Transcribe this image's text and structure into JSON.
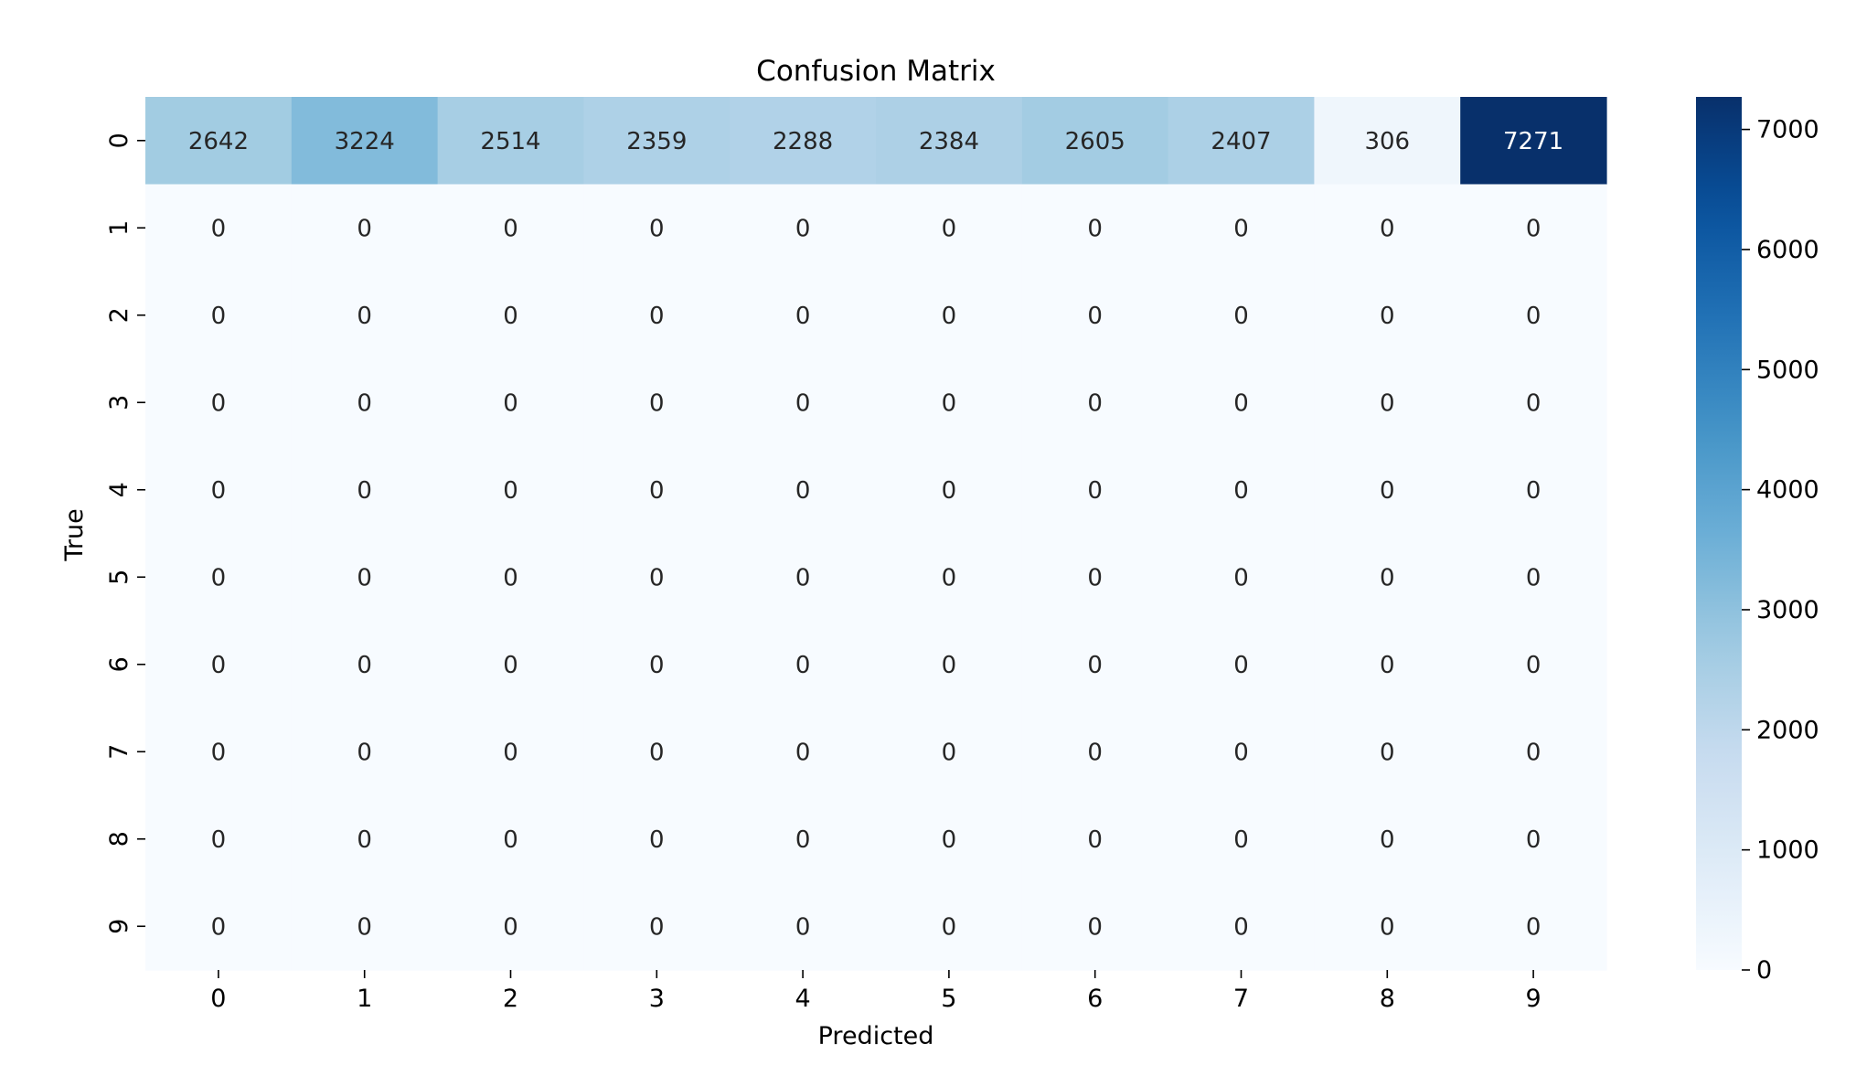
{
  "chart_data": {
    "type": "heatmap",
    "title": "Confusion Matrix",
    "xlabel": "Predicted",
    "ylabel": "True",
    "x_categories": [
      "0",
      "1",
      "2",
      "3",
      "4",
      "5",
      "6",
      "7",
      "8",
      "9"
    ],
    "y_categories": [
      "0",
      "1",
      "2",
      "3",
      "4",
      "5",
      "6",
      "7",
      "8",
      "9"
    ],
    "values": [
      [
        2642,
        3224,
        2514,
        2359,
        2288,
        2384,
        2605,
        2407,
        306,
        7271
      ],
      [
        0,
        0,
        0,
        0,
        0,
        0,
        0,
        0,
        0,
        0
      ],
      [
        0,
        0,
        0,
        0,
        0,
        0,
        0,
        0,
        0,
        0
      ],
      [
        0,
        0,
        0,
        0,
        0,
        0,
        0,
        0,
        0,
        0
      ],
      [
        0,
        0,
        0,
        0,
        0,
        0,
        0,
        0,
        0,
        0
      ],
      [
        0,
        0,
        0,
        0,
        0,
        0,
        0,
        0,
        0,
        0
      ],
      [
        0,
        0,
        0,
        0,
        0,
        0,
        0,
        0,
        0,
        0
      ],
      [
        0,
        0,
        0,
        0,
        0,
        0,
        0,
        0,
        0,
        0
      ],
      [
        0,
        0,
        0,
        0,
        0,
        0,
        0,
        0,
        0,
        0
      ],
      [
        0,
        0,
        0,
        0,
        0,
        0,
        0,
        0,
        0,
        0
      ]
    ],
    "colormap": "Blues",
    "colorbar": {
      "range": [
        0,
        7271
      ],
      "ticks": [
        0,
        1000,
        2000,
        3000,
        4000,
        5000,
        6000,
        7000
      ],
      "tick_labels": [
        "0",
        "1000",
        "2000",
        "3000",
        "4000",
        "5000",
        "6000",
        "7000"
      ]
    },
    "annotations_shown": true,
    "grid": false
  }
}
